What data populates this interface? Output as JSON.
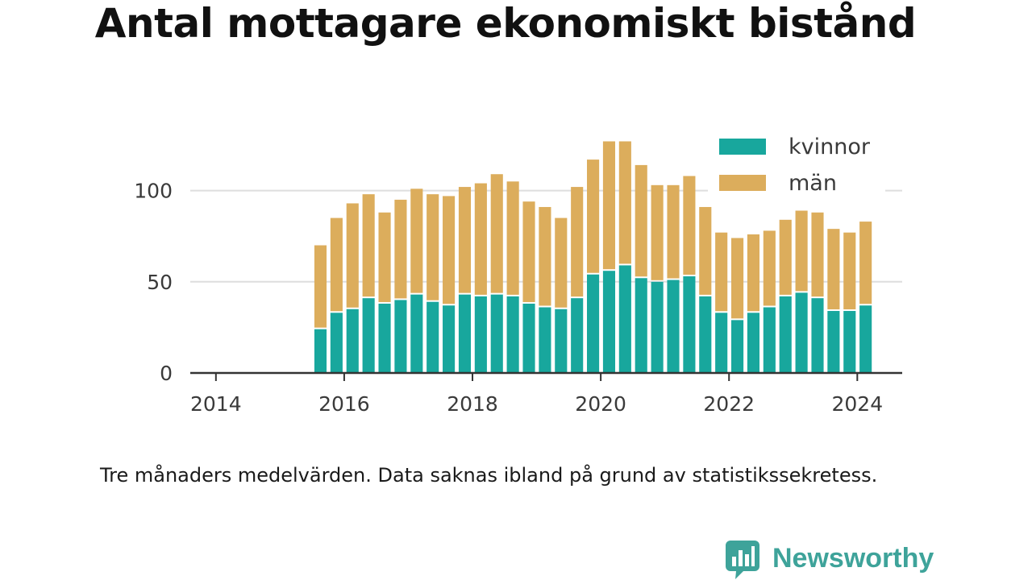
{
  "title": "Antal mottagare ekonomiskt bistånd",
  "footnote": "Tre månaders medelvärden. Data saknas ibland på grund av statistikssekretess.",
  "brand": {
    "name": "Newsworthy",
    "color": "#3ea39a",
    "icon": "bar-chart-speech-bubble-icon"
  },
  "chart_data": {
    "type": "bar",
    "stacked": true,
    "title": "Antal mottagare ekonomiskt bistånd",
    "xlabel": "",
    "ylabel": "",
    "ylim": [
      0,
      125
    ],
    "xlim": [
      2013.6,
      2024.7
    ],
    "x_ticks": [
      2014,
      2016,
      2018,
      2020,
      2022,
      2024
    ],
    "x_tick_labels": [
      "2014",
      "2016",
      "2018",
      "2020",
      "2022",
      "2024"
    ],
    "y_ticks": [
      0,
      50,
      100
    ],
    "y_tick_labels": [
      "0",
      "50",
      "100"
    ],
    "grid": true,
    "legend_position": "top-right",
    "categories": [
      2015.63,
      2015.88,
      2016.13,
      2016.38,
      2016.63,
      2016.88,
      2017.13,
      2017.38,
      2017.63,
      2017.88,
      2018.13,
      2018.38,
      2018.63,
      2018.88,
      2019.13,
      2019.38,
      2019.63,
      2019.88,
      2020.13,
      2020.38,
      2020.63,
      2020.88,
      2021.13,
      2021.38,
      2021.63,
      2021.88,
      2022.13,
      2022.38,
      2022.63,
      2022.88,
      2023.13,
      2023.38,
      2023.63,
      2023.88,
      2024.13
    ],
    "series": [
      {
        "name": "kvinnor",
        "color": "#18a79d",
        "values": [
          24,
          33,
          35,
          41,
          38,
          40,
          43,
          39,
          37,
          43,
          42,
          43,
          42,
          38,
          36,
          35,
          41,
          54,
          56,
          59,
          52,
          50,
          51,
          53,
          42,
          33,
          29,
          33,
          36,
          42,
          44,
          41,
          34,
          34,
          37
        ]
      },
      {
        "name": "män",
        "color": "#dcad5c",
        "values": [
          46,
          52,
          58,
          57,
          50,
          55,
          58,
          59,
          60,
          59,
          62,
          66,
          63,
          56,
          55,
          50,
          61,
          63,
          71,
          68,
          62,
          53,
          52,
          55,
          49,
          44,
          45,
          43,
          42,
          42,
          45,
          47,
          45,
          43,
          46
        ]
      }
    ]
  }
}
